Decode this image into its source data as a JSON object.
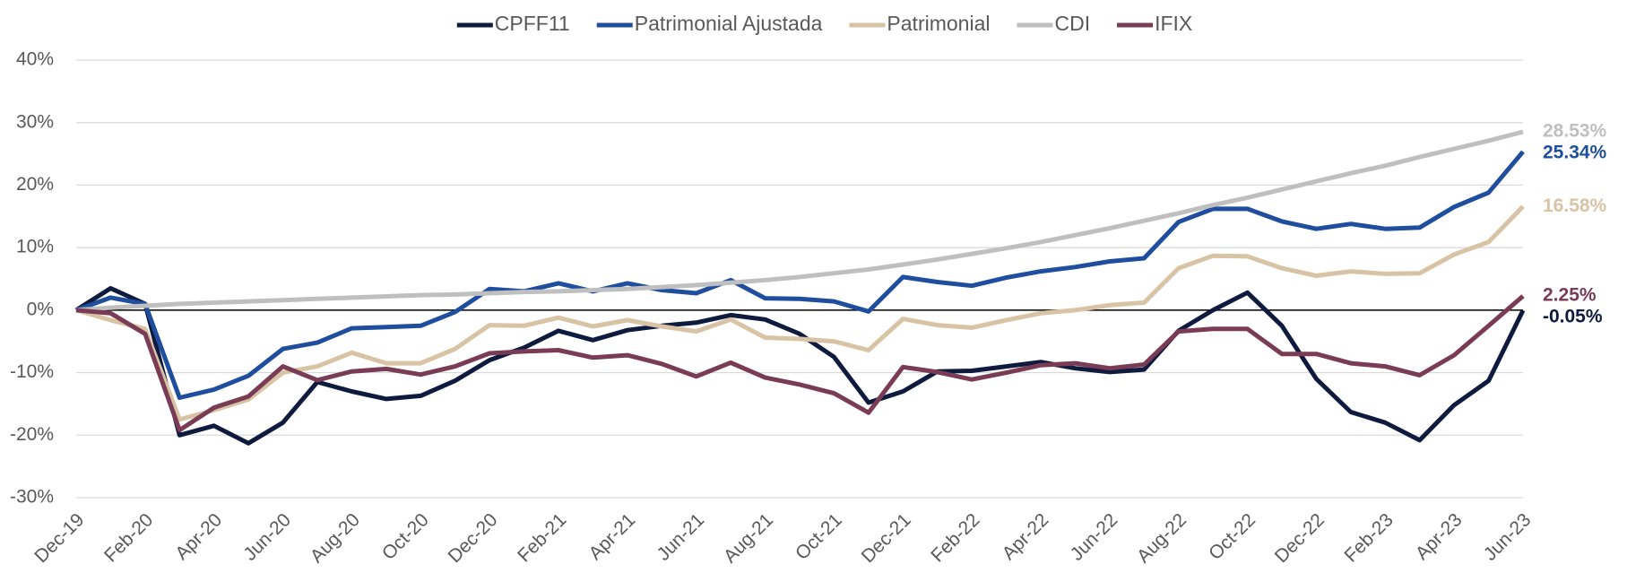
{
  "chart_data": {
    "type": "line",
    "categories": [
      "Dec-19",
      null,
      "Feb-20",
      null,
      "Apr-20",
      null,
      "Jun-20",
      null,
      "Aug-20",
      null,
      "Oct-20",
      null,
      "Dec-20",
      null,
      "Feb-21",
      null,
      "Apr-21",
      null,
      "Jun-21",
      null,
      "Aug-21",
      null,
      "Oct-21",
      null,
      "Dec-21",
      null,
      "Feb-22",
      null,
      "Apr-22",
      null,
      "Jun-22",
      null,
      "Aug-22",
      null,
      "Oct-22",
      null,
      "Dec-22",
      null,
      "Feb-23",
      null,
      "Apr-23",
      null,
      "Jun-23"
    ],
    "ylim": [
      -30,
      40
    ],
    "yticks": [
      {
        "value": -30,
        "label": "-30%"
      },
      {
        "value": -20,
        "label": "-20%"
      },
      {
        "value": -10,
        "label": "-10%"
      },
      {
        "value": 0,
        "label": "0%"
      },
      {
        "value": 10,
        "label": "10%"
      },
      {
        "value": 20,
        "label": "20%"
      },
      {
        "value": 30,
        "label": "30%"
      },
      {
        "value": 40,
        "label": "40%"
      }
    ],
    "grid": true,
    "legend": "top",
    "series": [
      {
        "name": "CPFF11",
        "color": "#0e1a3e",
        "values": [
          0,
          3.5,
          1.0,
          -20,
          -18.5,
          -21.3,
          -18,
          -11.5,
          -13,
          -14.2,
          -13.7,
          -11.3,
          -8,
          -6,
          -3.3,
          -4.8,
          -3.2,
          -2.5,
          -2.0,
          -0.8,
          -1.5,
          -3.8,
          -7.5,
          -14.8,
          -13,
          -9.8,
          -9.7,
          -9.0,
          -8.3,
          -9.3,
          -9.9,
          -9.5,
          -3.3,
          0,
          2.8,
          -2.5,
          -11,
          -16.3,
          -18,
          -20.8,
          -15.2,
          -11.3,
          -0.05
        ],
        "value_labels": [
          null,
          null,
          null,
          null,
          null,
          null,
          null,
          null,
          null,
          null,
          null,
          null,
          null,
          null,
          null,
          null,
          null,
          null,
          null,
          null,
          null,
          null,
          null,
          null,
          null,
          null,
          null,
          null,
          null,
          null,
          null,
          null,
          null,
          null,
          null,
          null,
          null,
          null,
          null,
          null,
          null,
          null,
          "-0.05%"
        ]
      },
      {
        "name": "Patrimonial Ajustada",
        "color": "#1f4e9e",
        "values": [
          0,
          2.0,
          1.0,
          -14,
          -12.7,
          -10.5,
          -6.2,
          -5.2,
          -2.9,
          -2.7,
          -2.5,
          -0.3,
          3.4,
          3.0,
          4.3,
          3.0,
          4.3,
          3.2,
          2.7,
          4.8,
          1.9,
          1.8,
          1.4,
          -0.2,
          5.3,
          4.5,
          3.9,
          5.2,
          6.2,
          6.9,
          7.8,
          8.3,
          14.1,
          16.2,
          16.2,
          14.2,
          13.0,
          13.8,
          13.0,
          13.2,
          16.5,
          18.8,
          25.34
        ],
        "value_labels": [
          null,
          null,
          null,
          null,
          null,
          null,
          null,
          null,
          null,
          null,
          null,
          null,
          null,
          null,
          null,
          null,
          null,
          null,
          null,
          null,
          null,
          null,
          null,
          null,
          null,
          null,
          null,
          null,
          null,
          null,
          null,
          null,
          null,
          null,
          null,
          null,
          null,
          null,
          null,
          null,
          null,
          null,
          "25.34%"
        ]
      },
      {
        "name": "Patrimonial",
        "color": "#d8c3a5",
        "values": [
          0,
          -1.6,
          -3.0,
          -17.5,
          -16,
          -14.3,
          -10,
          -9,
          -6.8,
          -8.5,
          -8.5,
          -6.2,
          -2.4,
          -2.5,
          -1.2,
          -2.6,
          -1.6,
          -2.6,
          -3.4,
          -1.5,
          -4.4,
          -4.6,
          -5.0,
          -6.4,
          -1.4,
          -2.4,
          -2.8,
          -1.6,
          -0.5,
          0,
          0.8,
          1.2,
          6.7,
          8.7,
          8.6,
          6.7,
          5.5,
          6.2,
          5.8,
          5.9,
          8.9,
          10.9,
          16.58
        ],
        "value_labels": [
          null,
          null,
          null,
          null,
          null,
          null,
          null,
          null,
          null,
          null,
          null,
          null,
          null,
          null,
          null,
          null,
          null,
          null,
          null,
          null,
          null,
          null,
          null,
          null,
          null,
          null,
          null,
          null,
          null,
          null,
          null,
          null,
          null,
          null,
          null,
          null,
          null,
          null,
          null,
          null,
          null,
          null,
          "16.58%"
        ]
      },
      {
        "name": "CDI",
        "color": "#bfbfbf",
        "values": [
          0,
          0.4,
          0.7,
          1.0,
          1.2,
          1.4,
          1.6,
          1.8,
          2.0,
          2.2,
          2.4,
          2.5,
          2.7,
          2.9,
          3.0,
          3.2,
          3.4,
          3.7,
          4.0,
          4.4,
          4.8,
          5.3,
          5.9,
          6.5,
          7.3,
          8.1,
          9.0,
          9.9,
          10.9,
          12.0,
          13.1,
          14.3,
          15.5,
          16.8,
          18.0,
          19.3,
          20.6,
          21.9,
          23.1,
          24.5,
          25.8,
          27.1,
          28.53
        ],
        "value_labels": [
          null,
          null,
          null,
          null,
          null,
          null,
          null,
          null,
          null,
          null,
          null,
          null,
          null,
          null,
          null,
          null,
          null,
          null,
          null,
          null,
          null,
          null,
          null,
          null,
          null,
          null,
          null,
          null,
          null,
          null,
          null,
          null,
          null,
          null,
          null,
          null,
          null,
          null,
          null,
          null,
          null,
          null,
          "28.53%"
        ]
      },
      {
        "name": "IFIX",
        "color": "#7a3b54",
        "values": [
          0,
          -0.5,
          -3.8,
          -19.2,
          -15.6,
          -13.8,
          -9.0,
          -11.2,
          -9.8,
          -9.4,
          -10.3,
          -9.0,
          -6.9,
          -6.6,
          -6.4,
          -7.6,
          -7.2,
          -8.6,
          -10.6,
          -8.4,
          -10.8,
          -11.9,
          -13.3,
          -16.4,
          -9.1,
          -9.9,
          -11.1,
          -10.0,
          -8.8,
          -8.5,
          -9.3,
          -8.7,
          -3.4,
          -3.0,
          -3.0,
          -7.0,
          -7.0,
          -8.5,
          -9.0,
          -10.4,
          -7.2,
          -2.5,
          2.25
        ],
        "value_labels": [
          null,
          null,
          null,
          null,
          null,
          null,
          null,
          null,
          null,
          null,
          null,
          null,
          null,
          null,
          null,
          null,
          null,
          null,
          null,
          null,
          null,
          null,
          null,
          null,
          null,
          null,
          null,
          null,
          null,
          null,
          null,
          null,
          null,
          null,
          null,
          null,
          null,
          null,
          null,
          null,
          null,
          null,
          "2.25%"
        ]
      }
    ]
  }
}
